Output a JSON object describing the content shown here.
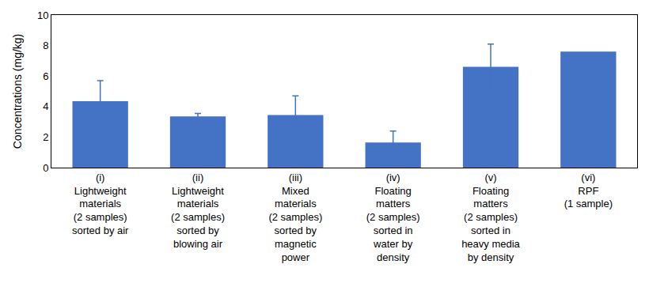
{
  "chart_data": {
    "type": "bar",
    "y_label": "Concentrations (mg/kg)",
    "categories": [
      "(i)\nLightweight\nmaterials\n(2 samples)\nsorted by air",
      "(ii)\nLightweight\nmaterials\n(2 samples)\nsorted by\nblowing air",
      "(iii)\nMixed\nmaterials\n(2 samples)\nsorted by\nmagnetic\npower",
      "(iv)\nFloating\nmatters\n(2 samples)\nsorted in\nwater by\ndensity",
      "(v)\nFloating\nmatters\n(2 samples)\nsorted in\nheavy media\nby density",
      "(vi)\nRPF\n(1 sample)"
    ],
    "values": [
      4.35,
      3.35,
      3.45,
      1.65,
      6.6,
      7.6
    ],
    "errors": [
      1.35,
      0.2,
      1.25,
      0.75,
      1.5,
      null
    ],
    "color": "#4472c4",
    "ylim": [
      0,
      10
    ],
    "yticks": [
      0,
      2,
      4,
      6,
      8,
      10
    ],
    "grid": false
  }
}
